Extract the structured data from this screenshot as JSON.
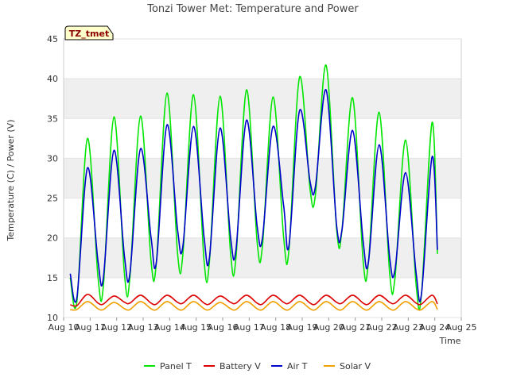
{
  "chart_data": {
    "type": "line",
    "title": "Tonzi Tower Met: Temperature and Power",
    "xlabel": "Time",
    "ylabel": "Temperature (C) / Power (V)",
    "tag": "TZ_tmet",
    "xlim": [
      10,
      25
    ],
    "ylim": [
      10,
      45
    ],
    "x_ticks": [
      10,
      11,
      12,
      13,
      14,
      15,
      16,
      17,
      18,
      19,
      20,
      21,
      22,
      23,
      24,
      25
    ],
    "x_tick_labels": [
      "Aug 10",
      "Aug 11",
      "Aug 12",
      "Aug 13",
      "Aug 14",
      "Aug 15",
      "Aug 16",
      "Aug 17",
      "Aug 18",
      "Aug 19",
      "Aug 20",
      "Aug 21",
      "Aug 22",
      "Aug 23",
      "Aug 24",
      "Aug 25"
    ],
    "y_ticks": [
      10,
      15,
      20,
      25,
      30,
      35,
      40,
      45
    ],
    "y_tick_labels": [
      "10",
      "15",
      "20",
      "25",
      "30",
      "35",
      "40",
      "45"
    ],
    "x": [
      10.25,
      10.5,
      10.9,
      11.3,
      11.5,
      11.9,
      12.3,
      12.5,
      12.9,
      13.3,
      13.5,
      13.9,
      14.3,
      14.5,
      14.9,
      15.3,
      15.5,
      15.9,
      16.3,
      16.5,
      16.9,
      17.3,
      17.5,
      17.9,
      18.3,
      18.5,
      18.9,
      19.3,
      19.5,
      19.9,
      20.3,
      20.5,
      20.9,
      21.3,
      21.5,
      21.9,
      22.3,
      22.5,
      22.9,
      23.3,
      23.5,
      23.9,
      24.1
    ],
    "series": [
      {
        "name": "Panel T",
        "color": "#00e600",
        "values": [
          15.0,
          12.0,
          32.5,
          15.0,
          14.0,
          35.2,
          15.2,
          15.0,
          35.3,
          17.0,
          17.0,
          38.2,
          18.0,
          18.0,
          38.0,
          17.0,
          17.0,
          37.8,
          18.0,
          17.5,
          38.6,
          19.5,
          19.0,
          37.7,
          20.0,
          18.5,
          40.2,
          26.0,
          25.5,
          41.7,
          21.0,
          21.0,
          37.6,
          17.0,
          17.0,
          35.8,
          15.5,
          15.0,
          32.3,
          14.0,
          13.0,
          34.5,
          18.0
        ]
      },
      {
        "name": "Battery V",
        "color": "#dd0000",
        "values": [
          11.6,
          11.5,
          12.9,
          11.8,
          11.7,
          12.7,
          11.9,
          11.8,
          12.8,
          11.8,
          11.7,
          12.8,
          11.9,
          11.8,
          12.8,
          11.8,
          11.7,
          12.7,
          11.9,
          11.8,
          12.8,
          11.8,
          11.7,
          12.8,
          11.9,
          11.8,
          12.8,
          11.8,
          11.7,
          12.8,
          11.9,
          11.8,
          12.8,
          11.8,
          11.7,
          12.8,
          11.9,
          11.8,
          12.8,
          11.8,
          11.7,
          12.8,
          11.7
        ]
      },
      {
        "name": "Air T",
        "color": "#0000cc",
        "values": [
          15.5,
          12.5,
          28.8,
          17.0,
          15.0,
          31.0,
          17.5,
          15.5,
          31.2,
          20.0,
          17.0,
          34.2,
          21.0,
          19.0,
          34.0,
          20.0,
          17.5,
          33.8,
          20.0,
          18.5,
          34.8,
          21.5,
          20.0,
          34.0,
          24.0,
          19.0,
          36.0,
          27.0,
          26.5,
          38.6,
          21.5,
          21.0,
          33.5,
          19.5,
          17.0,
          31.7,
          17.5,
          16.0,
          28.2,
          15.5,
          13.0,
          30.2,
          18.5
        ]
      },
      {
        "name": "Solar V",
        "color": "#f0a000",
        "values": [
          11.0,
          11.0,
          12.0,
          11.1,
          11.0,
          11.9,
          11.1,
          11.0,
          12.0,
          11.1,
          11.0,
          12.0,
          11.1,
          11.0,
          12.0,
          11.1,
          11.0,
          11.9,
          11.1,
          11.0,
          12.0,
          11.1,
          11.0,
          12.0,
          11.1,
          11.0,
          12.0,
          11.1,
          11.0,
          12.0,
          11.1,
          11.0,
          12.0,
          11.1,
          11.0,
          12.0,
          11.1,
          11.0,
          12.0,
          11.1,
          11.0,
          12.0,
          11.0
        ]
      }
    ],
    "grid": true,
    "legend_position": "bottom"
  }
}
